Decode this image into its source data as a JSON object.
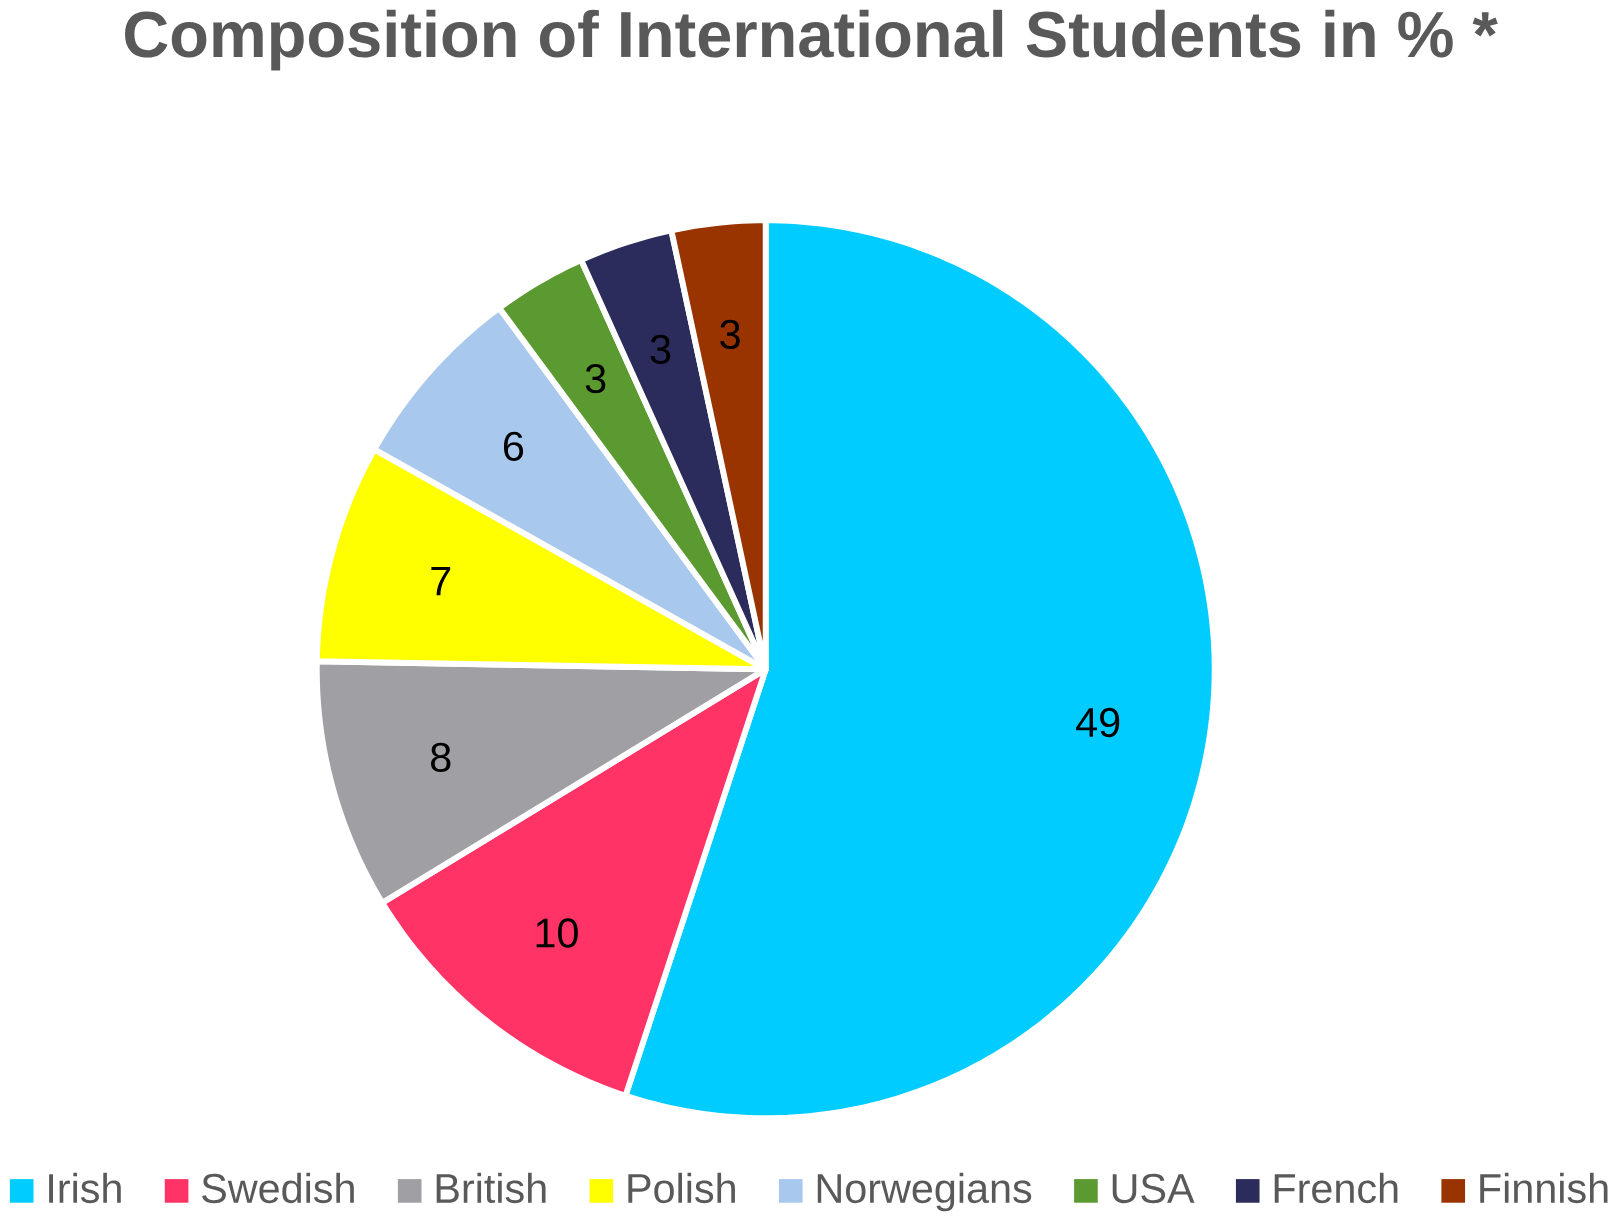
{
  "chart_data": {
    "type": "pie",
    "title": "Composition of International Students in % *",
    "categories": [
      "Irish",
      "Swedish",
      "British",
      "Polish",
      "Norwegians",
      "USA",
      "French",
      "Finnish"
    ],
    "values": [
      49,
      10,
      8,
      7,
      6,
      3,
      3,
      3
    ],
    "colors": [
      "#00ccff",
      "#ff3366",
      "#a0a0a4",
      "#ffff00",
      "#a9c8ee",
      "#5b9a30",
      "#2b2b5c",
      "#993300"
    ],
    "data_labels": true,
    "legend": "bottom"
  }
}
